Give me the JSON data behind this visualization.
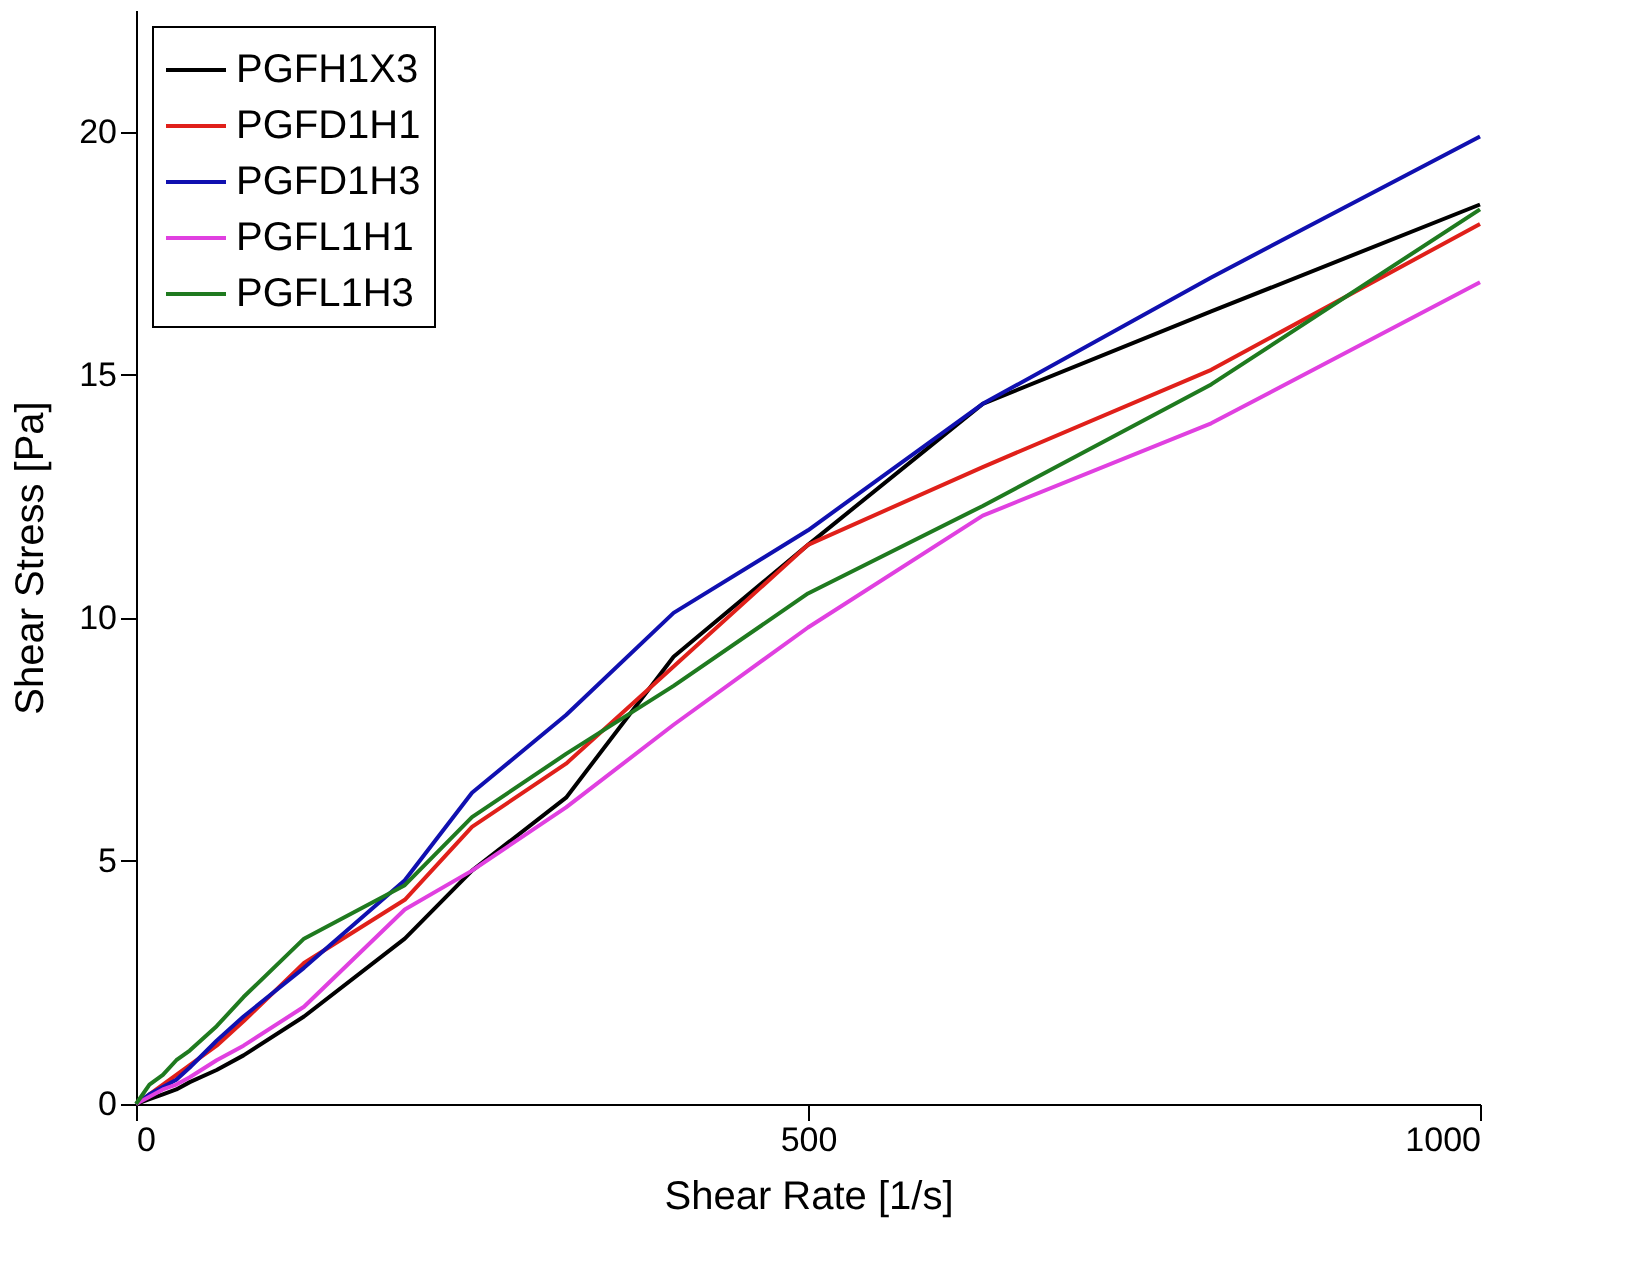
{
  "chart_data": {
    "type": "line",
    "xlabel": "Shear Rate [1/s]",
    "ylabel": "Shear Stress [Pa]",
    "x": [
      0,
      10,
      20,
      30,
      40,
      60,
      80,
      125,
      200,
      250,
      320,
      400,
      500,
      630,
      800,
      1000
    ],
    "xlim": [
      0,
      1000
    ],
    "xticks": [
      0,
      500,
      1000
    ],
    "ylim": [
      0,
      22.5
    ],
    "yticks": [
      0,
      5,
      10,
      15,
      20
    ],
    "grid": false,
    "legend": "top left",
    "line_style": "solid",
    "marker": "none",
    "series": [
      {
        "name": "PGFH1X3",
        "color": "#000000",
        "values": [
          0,
          0.1,
          0.2,
          0.3,
          0.45,
          0.7,
          1.0,
          1.8,
          3.4,
          4.8,
          6.3,
          9.2,
          11.5,
          14.4,
          16.3,
          18.5
        ]
      },
      {
        "name": "PGFD1H1",
        "color": "#e0201a",
        "values": [
          0,
          0.2,
          0.4,
          0.6,
          0.8,
          1.2,
          1.7,
          2.9,
          4.2,
          5.7,
          7.0,
          9.0,
          11.5,
          13.1,
          15.1,
          18.1
        ]
      },
      {
        "name": "PGFD1H3",
        "color": "#1010b0",
        "values": [
          0,
          0.2,
          0.35,
          0.5,
          0.75,
          1.3,
          1.8,
          2.8,
          4.6,
          6.4,
          8.0,
          10.1,
          11.8,
          14.4,
          17.0,
          19.9
        ]
      },
      {
        "name": "PGFL1H1",
        "color": "#e040e0",
        "values": [
          0,
          0.15,
          0.3,
          0.4,
          0.55,
          0.9,
          1.2,
          2.0,
          4.0,
          4.8,
          6.1,
          7.8,
          9.8,
          12.1,
          14.0,
          16.9
        ]
      },
      {
        "name": "PGFL1H3",
        "color": "#1f7a1f",
        "values": [
          0,
          0.4,
          0.6,
          0.9,
          1.1,
          1.6,
          2.2,
          3.4,
          4.5,
          5.9,
          7.2,
          8.6,
          10.5,
          12.3,
          14.8,
          18.4
        ]
      }
    ]
  }
}
